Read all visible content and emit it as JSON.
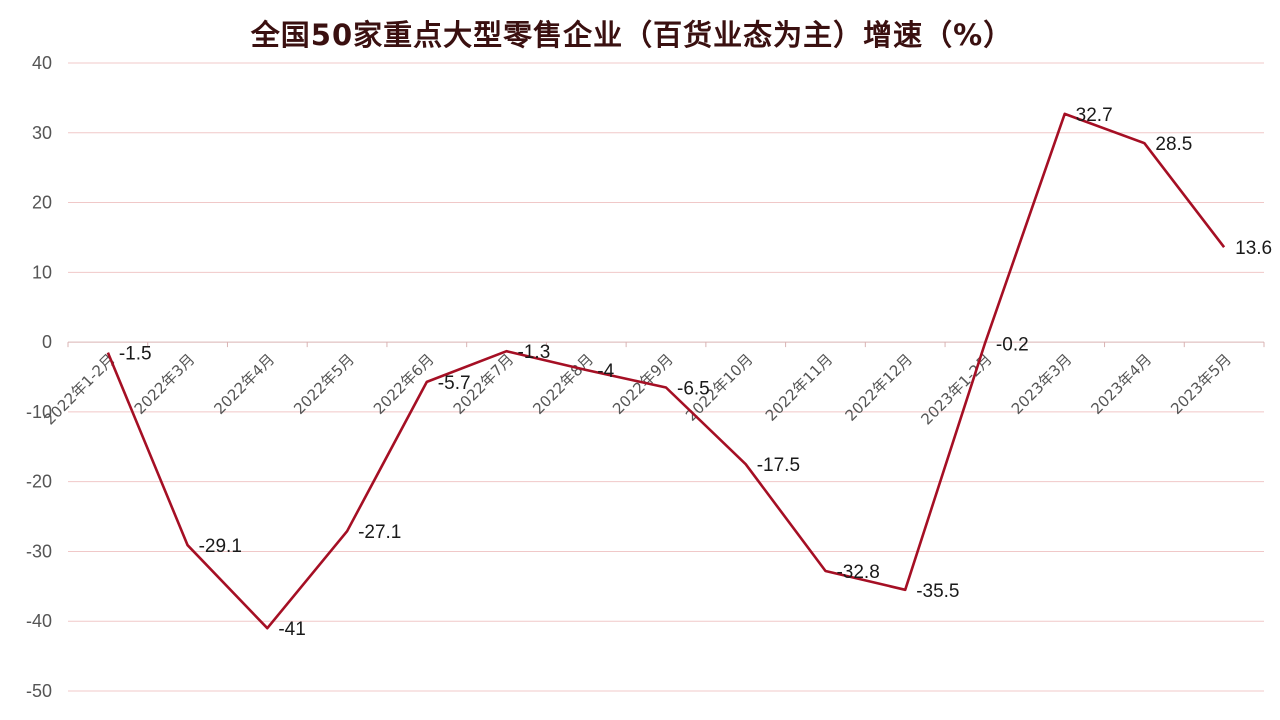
{
  "chart_data": {
    "type": "line",
    "title": "全国50家重点大型零售企业（百货业态为主）增速（%）",
    "xlabel": "",
    "ylabel": "",
    "ylim": [
      -50,
      40
    ],
    "yticks": [
      40,
      30,
      20,
      10,
      0,
      -10,
      -20,
      -30,
      -40,
      -50
    ],
    "grid": true,
    "legend": "none",
    "colors": {
      "line": "#a50f24",
      "grid": "#f0c8c8",
      "title": "#3a1010"
    },
    "categories": [
      "2022年1-2月",
      "2022年3月",
      "2022年4月",
      "2022年5月",
      "2022年6月",
      "2022年7月",
      "2022年8月",
      "2022年9月",
      "2022年10月",
      "2022年11月",
      "2022年12月",
      "2023年1-2月",
      "2023年3月",
      "2023年4月",
      "2023年5月"
    ],
    "series": [
      {
        "values": [
          -1.5,
          -29.1,
          -41,
          -27.1,
          -5.7,
          -1.3,
          -4,
          -6.5,
          -17.5,
          -32.8,
          -35.5,
          -0.2,
          32.7,
          28.5,
          13.6
        ]
      }
    ]
  }
}
